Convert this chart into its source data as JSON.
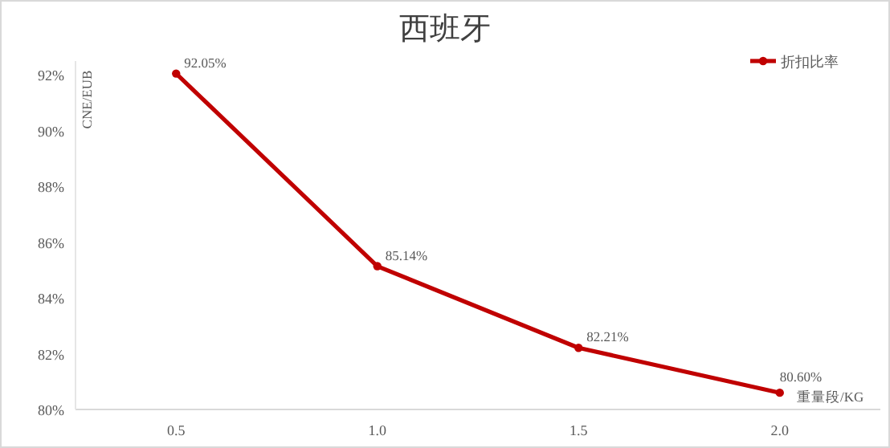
{
  "chart_data": {
    "type": "line",
    "title": "西班牙",
    "xlabel": "重量段/KG",
    "ylabel": "CNE/EUB",
    "categories": [
      "0.5",
      "1.0",
      "1.5",
      "2.0"
    ],
    "series": [
      {
        "name": "折扣比率",
        "color": "#c00000",
        "values": [
          92.05,
          85.14,
          82.21,
          80.6
        ],
        "value_labels": [
          "92.05%",
          "85.14%",
          "82.21%",
          "80.60%"
        ]
      }
    ],
    "ylim": [
      80,
      92.5
    ],
    "yticks": [
      {
        "value": 80,
        "label": "80%"
      },
      {
        "value": 82,
        "label": "82%"
      },
      {
        "value": 84,
        "label": "84%"
      },
      {
        "value": 86,
        "label": "86%"
      },
      {
        "value": 88,
        "label": "88%"
      },
      {
        "value": 90,
        "label": "90%"
      },
      {
        "value": 92,
        "label": "92%"
      }
    ],
    "grid": false,
    "legend": "top right",
    "marker": "circle",
    "line_style": "solid"
  }
}
